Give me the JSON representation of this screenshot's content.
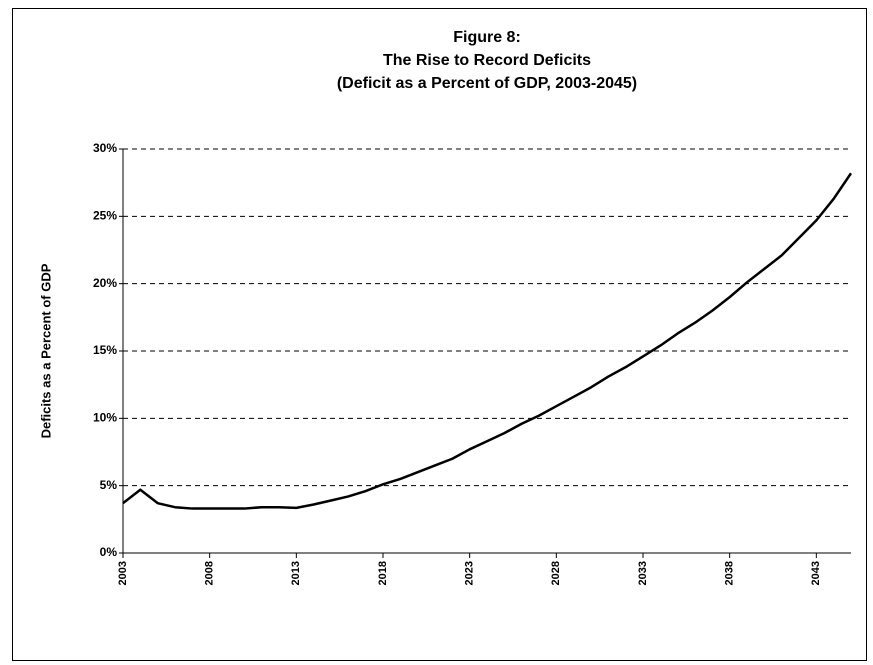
{
  "chart_data": {
    "type": "line",
    "title": [
      "Figure 8:",
      "The Rise to Record Deficits",
      "(Deficit as a Percent of GDP, 2003-2045)"
    ],
    "ylabel": "Deficits as a Percent of GDP",
    "x": [
      2003,
      2004,
      2005,
      2006,
      2007,
      2008,
      2009,
      2010,
      2011,
      2012,
      2013,
      2014,
      2015,
      2016,
      2017,
      2018,
      2019,
      2020,
      2021,
      2022,
      2023,
      2024,
      2025,
      2026,
      2027,
      2028,
      2029,
      2030,
      2031,
      2032,
      2033,
      2034,
      2035,
      2036,
      2037,
      2038,
      2039,
      2040,
      2041,
      2042,
      2043,
      2044,
      2045
    ],
    "series": [
      {
        "color": "#000000",
        "values": [
          3.7,
          4.7,
          3.7,
          3.4,
          3.3,
          3.3,
          3.3,
          3.3,
          3.4,
          3.4,
          3.35,
          3.6,
          3.9,
          4.2,
          4.6,
          5.1,
          5.5,
          6.0,
          6.5,
          7.0,
          7.7,
          8.3,
          8.9,
          9.6,
          10.2,
          10.9,
          11.6,
          12.3,
          13.1,
          13.8,
          14.6,
          15.4,
          16.3,
          17.1,
          18.0,
          19.0,
          20.1,
          21.1,
          22.1,
          23.4,
          24.7,
          26.3,
          28.2
        ]
      }
    ],
    "xlim": [
      2003,
      2045
    ],
    "xticks": [
      2003,
      2008,
      2013,
      2018,
      2023,
      2028,
      2033,
      2038,
      2043
    ],
    "ylim": [
      0,
      30
    ],
    "yticks": [
      {
        "value": 0,
        "label": "0%"
      },
      {
        "value": 5,
        "label": "5%"
      },
      {
        "value": 10,
        "label": "10%"
      },
      {
        "value": 15,
        "label": "15%"
      },
      {
        "value": 20,
        "label": "20%"
      },
      {
        "value": 25,
        "label": "25%"
      },
      {
        "value": 30,
        "label": "30%"
      }
    ],
    "grid": true
  }
}
